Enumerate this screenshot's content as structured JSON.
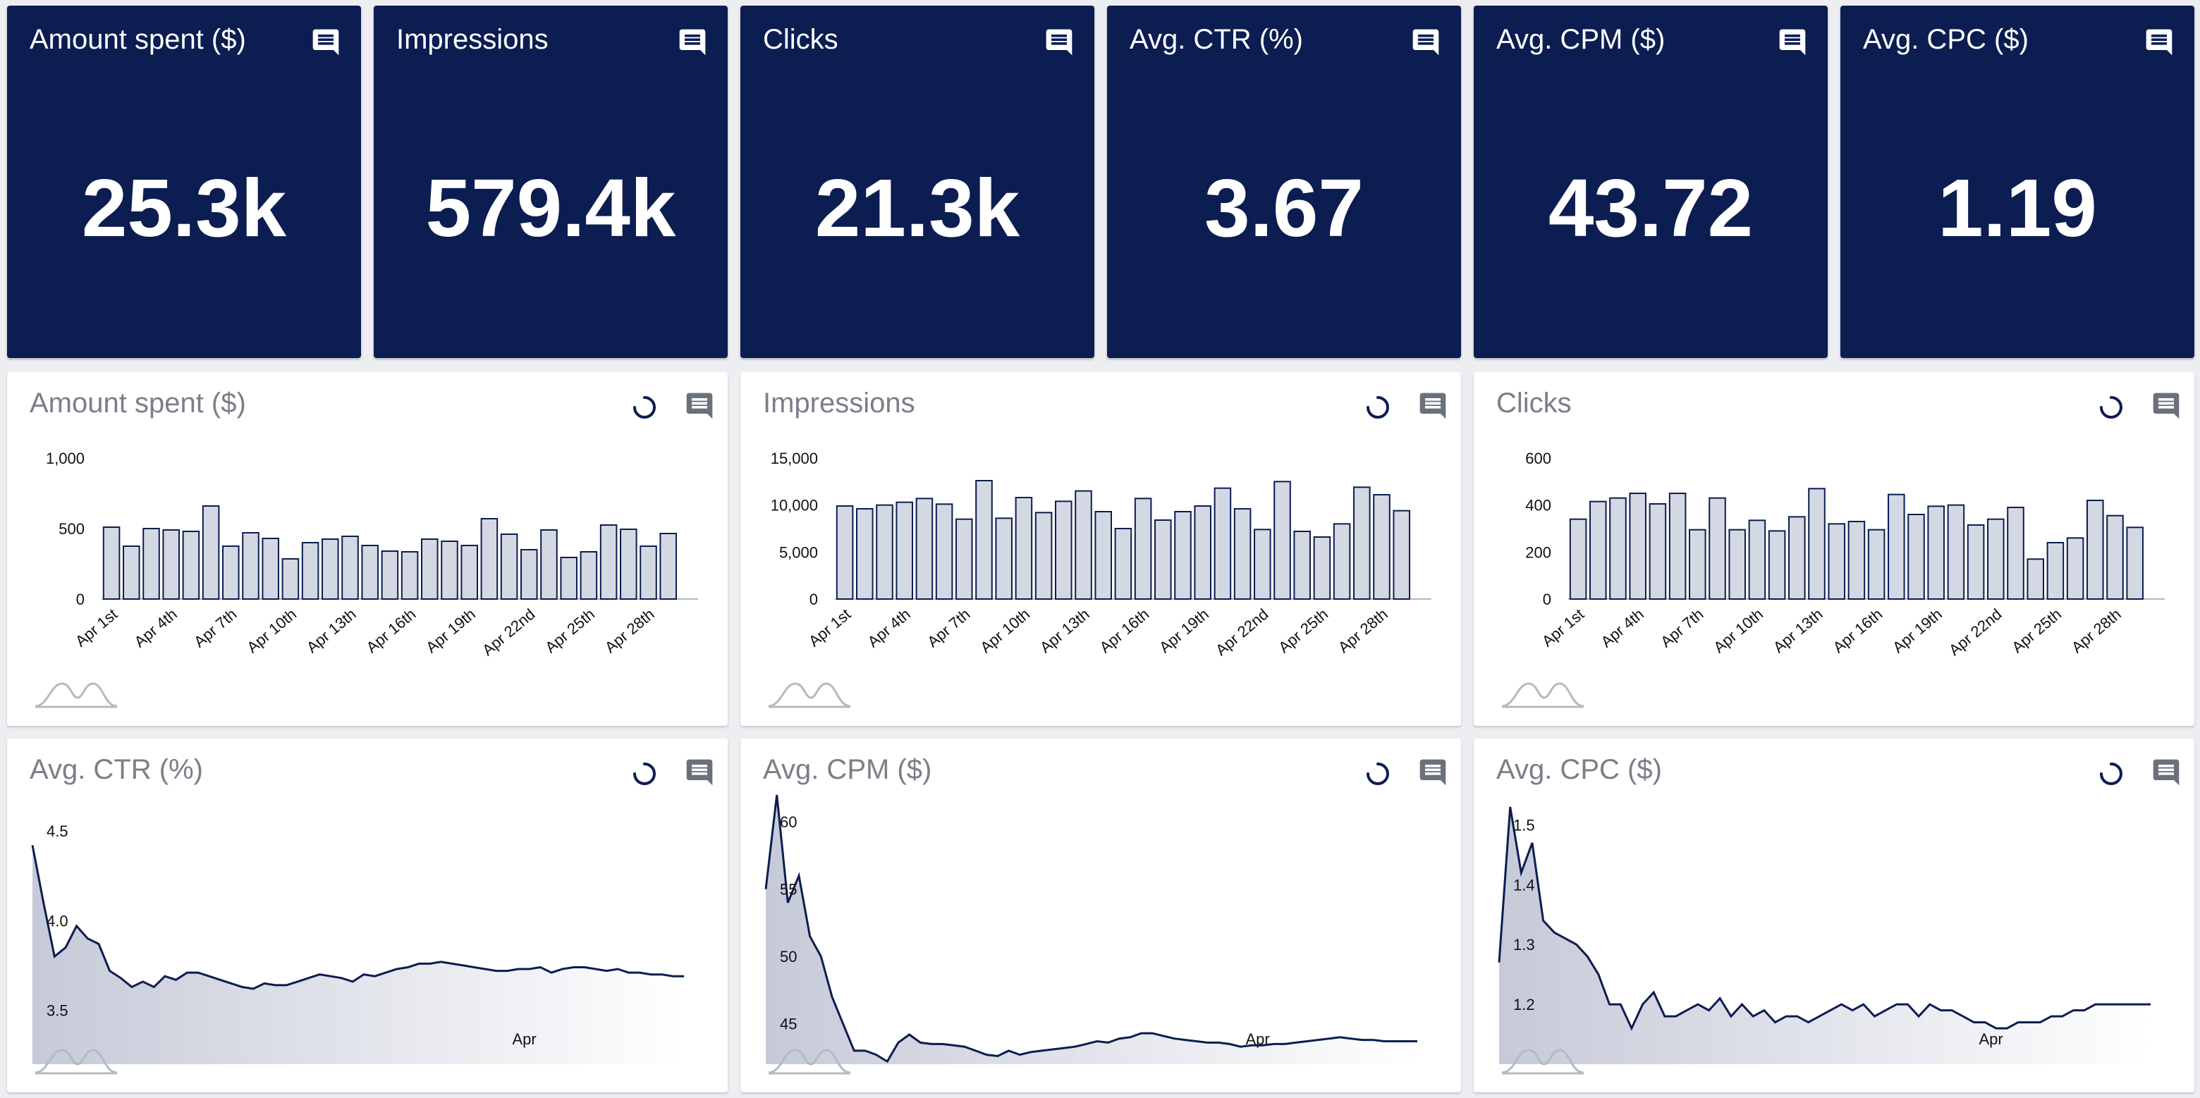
{
  "kpis": [
    {
      "label": "Amount spent ($)",
      "value": "25.3k"
    },
    {
      "label": "Impressions",
      "value": "579.4k"
    },
    {
      "label": "Clicks",
      "value": "21.3k"
    },
    {
      "label": "Avg. CTR (%)",
      "value": "3.67"
    },
    {
      "label": "Avg. CPM ($)",
      "value": "43.72"
    },
    {
      "label": "Avg. CPC ($)",
      "value": "1.19"
    }
  ],
  "colors": {
    "kpi_bg": "#0b1d51",
    "bar_fill": "#d4d8e3",
    "line": "#0b1d51",
    "area_top": "#c6cad8",
    "area_bottom": "#ffffff"
  },
  "chart_data": [
    {
      "type": "bar",
      "title": "Amount spent ($)",
      "categories": [
        "Apr 1st",
        "Apr 2nd",
        "Apr 3rd",
        "Apr 4th",
        "Apr 5th",
        "Apr 6th",
        "Apr 7th",
        "Apr 8th",
        "Apr 9th",
        "Apr 10th",
        "Apr 11th",
        "Apr 12th",
        "Apr 13th",
        "Apr 14th",
        "Apr 15th",
        "Apr 16th",
        "Apr 17th",
        "Apr 18th",
        "Apr 19th",
        "Apr 20th",
        "Apr 21st",
        "Apr 22nd",
        "Apr 23rd",
        "Apr 24th",
        "Apr 25th",
        "Apr 26th",
        "Apr 27th",
        "Apr 28th",
        "Apr 29th",
        "Apr 30th"
      ],
      "tick_labels": [
        "Apr 1st",
        "Apr 4th",
        "Apr 7th",
        "Apr 10th",
        "Apr 13th",
        "Apr 16th",
        "Apr 19th",
        "Apr 22nd",
        "Apr 25th",
        "Apr 28th"
      ],
      "values": [
        510,
        375,
        500,
        490,
        480,
        660,
        375,
        470,
        430,
        285,
        400,
        425,
        445,
        380,
        340,
        335,
        425,
        410,
        380,
        570,
        460,
        350,
        490,
        295,
        335,
        525,
        495,
        375,
        465,
        0
      ],
      "yticks": [
        "0",
        "500",
        "1,000"
      ],
      "ylim": [
        0,
        1000
      ]
    },
    {
      "type": "bar",
      "title": "Impressions",
      "categories": [
        "Apr 1st",
        "Apr 2nd",
        "Apr 3rd",
        "Apr 4th",
        "Apr 5th",
        "Apr 6th",
        "Apr 7th",
        "Apr 8th",
        "Apr 9th",
        "Apr 10th",
        "Apr 11th",
        "Apr 12th",
        "Apr 13th",
        "Apr 14th",
        "Apr 15th",
        "Apr 16th",
        "Apr 17th",
        "Apr 18th",
        "Apr 19th",
        "Apr 20th",
        "Apr 21st",
        "Apr 22nd",
        "Apr 23rd",
        "Apr 24th",
        "Apr 25th",
        "Apr 26th",
        "Apr 27th",
        "Apr 28th",
        "Apr 29th",
        "Apr 30th"
      ],
      "tick_labels": [
        "Apr 1st",
        "Apr 4th",
        "Apr 7th",
        "Apr 10th",
        "Apr 13th",
        "Apr 16th",
        "Apr 19th",
        "Apr 22nd",
        "Apr 25th",
        "Apr 28th"
      ],
      "values": [
        9900,
        9600,
        10000,
        10300,
        10700,
        10100,
        8500,
        12600,
        8600,
        10800,
        9200,
        10400,
        11500,
        9300,
        7500,
        10700,
        8400,
        9300,
        9900,
        11800,
        9600,
        7400,
        12500,
        7200,
        6600,
        8000,
        11900,
        11100,
        9400,
        0
      ],
      "yticks": [
        "0",
        "5,000",
        "10,000",
        "15,000"
      ],
      "ylim": [
        0,
        15000
      ]
    },
    {
      "type": "bar",
      "title": "Clicks",
      "categories": [
        "Apr 1st",
        "Apr 2nd",
        "Apr 3rd",
        "Apr 4th",
        "Apr 5th",
        "Apr 6th",
        "Apr 7th",
        "Apr 8th",
        "Apr 9th",
        "Apr 10th",
        "Apr 11th",
        "Apr 12th",
        "Apr 13th",
        "Apr 14th",
        "Apr 15th",
        "Apr 16th",
        "Apr 17th",
        "Apr 18th",
        "Apr 19th",
        "Apr 20th",
        "Apr 21st",
        "Apr 22nd",
        "Apr 23rd",
        "Apr 24th",
        "Apr 25th",
        "Apr 26th",
        "Apr 27th",
        "Apr 28th",
        "Apr 29th",
        "Apr 30th"
      ],
      "tick_labels": [
        "Apr 1st",
        "Apr 4th",
        "Apr 7th",
        "Apr 10th",
        "Apr 13th",
        "Apr 16th",
        "Apr 19th",
        "Apr 22nd",
        "Apr 25th",
        "Apr 28th"
      ],
      "values": [
        340,
        415,
        430,
        450,
        405,
        450,
        295,
        430,
        295,
        335,
        290,
        350,
        470,
        320,
        330,
        295,
        445,
        360,
        395,
        400,
        315,
        340,
        390,
        170,
        240,
        260,
        420,
        355,
        305,
        0
      ],
      "yticks": [
        "0",
        "200",
        "400",
        "600"
      ],
      "ylim": [
        0,
        600
      ]
    },
    {
      "type": "area",
      "title": "Avg. CTR (%)",
      "ylim": [
        3.2,
        4.7
      ],
      "yticks": [
        "3.5",
        "4.0",
        "4.5"
      ],
      "xlabel": "Apr",
      "values": [
        4.42,
        4.1,
        3.8,
        3.85,
        3.97,
        3.9,
        3.87,
        3.72,
        3.68,
        3.63,
        3.66,
        3.63,
        3.69,
        3.67,
        3.71,
        3.71,
        3.69,
        3.67,
        3.65,
        3.63,
        3.62,
        3.65,
        3.64,
        3.64,
        3.66,
        3.68,
        3.7,
        3.69,
        3.68,
        3.66,
        3.7,
        3.69,
        3.71,
        3.73,
        3.74,
        3.76,
        3.76,
        3.77,
        3.76,
        3.75,
        3.74,
        3.73,
        3.72,
        3.72,
        3.73,
        3.73,
        3.74,
        3.71,
        3.73,
        3.74,
        3.74,
        3.73,
        3.72,
        3.73,
        3.71,
        3.71,
        3.7,
        3.7,
        3.69,
        3.69
      ]
    },
    {
      "type": "area",
      "title": "Avg. CPM ($)",
      "ylim": [
        42,
        62
      ],
      "yticks": [
        "45",
        "50",
        "55",
        "60"
      ],
      "xlabel": "Apr",
      "values": [
        55,
        62,
        54,
        56,
        51.5,
        50,
        47,
        45,
        43,
        43,
        42.7,
        42.2,
        43.6,
        44.2,
        43.6,
        43.5,
        43.5,
        43.4,
        43.3,
        43,
        42.7,
        42.6,
        43,
        42.7,
        42.9,
        43,
        43.1,
        43.2,
        43.3,
        43.5,
        43.7,
        43.6,
        43.9,
        44,
        44.3,
        44.3,
        44.1,
        43.9,
        43.8,
        43.7,
        43.6,
        43.6,
        43.5,
        43.3,
        43.4,
        43.4,
        43.5,
        43.5,
        43.6,
        43.7,
        43.8,
        43.9,
        44,
        43.9,
        43.8,
        43.8,
        43.7,
        43.7,
        43.7,
        43.7
      ]
    },
    {
      "type": "area",
      "title": "Avg. CPC ($)",
      "ylim": [
        1.1,
        1.55
      ],
      "yticks": [
        "1.2",
        "1.3",
        "1.4",
        "1.5"
      ],
      "xlabel": "Apr",
      "values": [
        1.27,
        1.53,
        1.42,
        1.47,
        1.34,
        1.32,
        1.31,
        1.3,
        1.28,
        1.25,
        1.2,
        1.2,
        1.16,
        1.2,
        1.22,
        1.18,
        1.18,
        1.19,
        1.2,
        1.19,
        1.21,
        1.18,
        1.2,
        1.18,
        1.19,
        1.17,
        1.18,
        1.18,
        1.17,
        1.18,
        1.19,
        1.2,
        1.19,
        1.2,
        1.18,
        1.19,
        1.2,
        1.2,
        1.18,
        1.2,
        1.19,
        1.19,
        1.18,
        1.17,
        1.17,
        1.16,
        1.16,
        1.17,
        1.17,
        1.17,
        1.18,
        1.18,
        1.19,
        1.19,
        1.2,
        1.2,
        1.2,
        1.2,
        1.2,
        1.2
      ]
    }
  ]
}
